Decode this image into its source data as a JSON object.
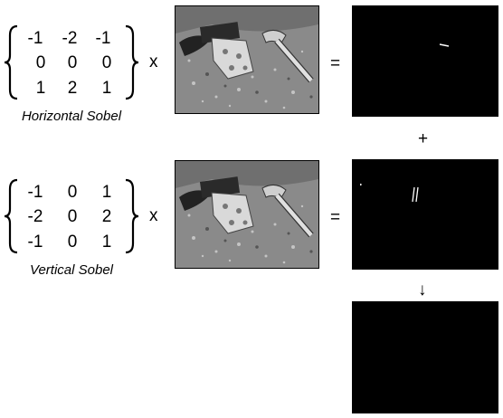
{
  "row1": {
    "matrix": [
      [
        "-1",
        "-2",
        "-1"
      ],
      [
        "0",
        "0",
        "0"
      ],
      [
        "1",
        "2",
        "1"
      ]
    ],
    "caption": "Horizontal Sobel",
    "times": "x",
    "equals": "="
  },
  "row2": {
    "matrix": [
      [
        "-1",
        "0",
        "1"
      ],
      [
        "-2",
        "0",
        "2"
      ],
      [
        "-1",
        "0",
        "1"
      ]
    ],
    "caption": "Vertical Sobel",
    "times": "x",
    "equals": "="
  },
  "plus": "+",
  "arrow": "↓"
}
